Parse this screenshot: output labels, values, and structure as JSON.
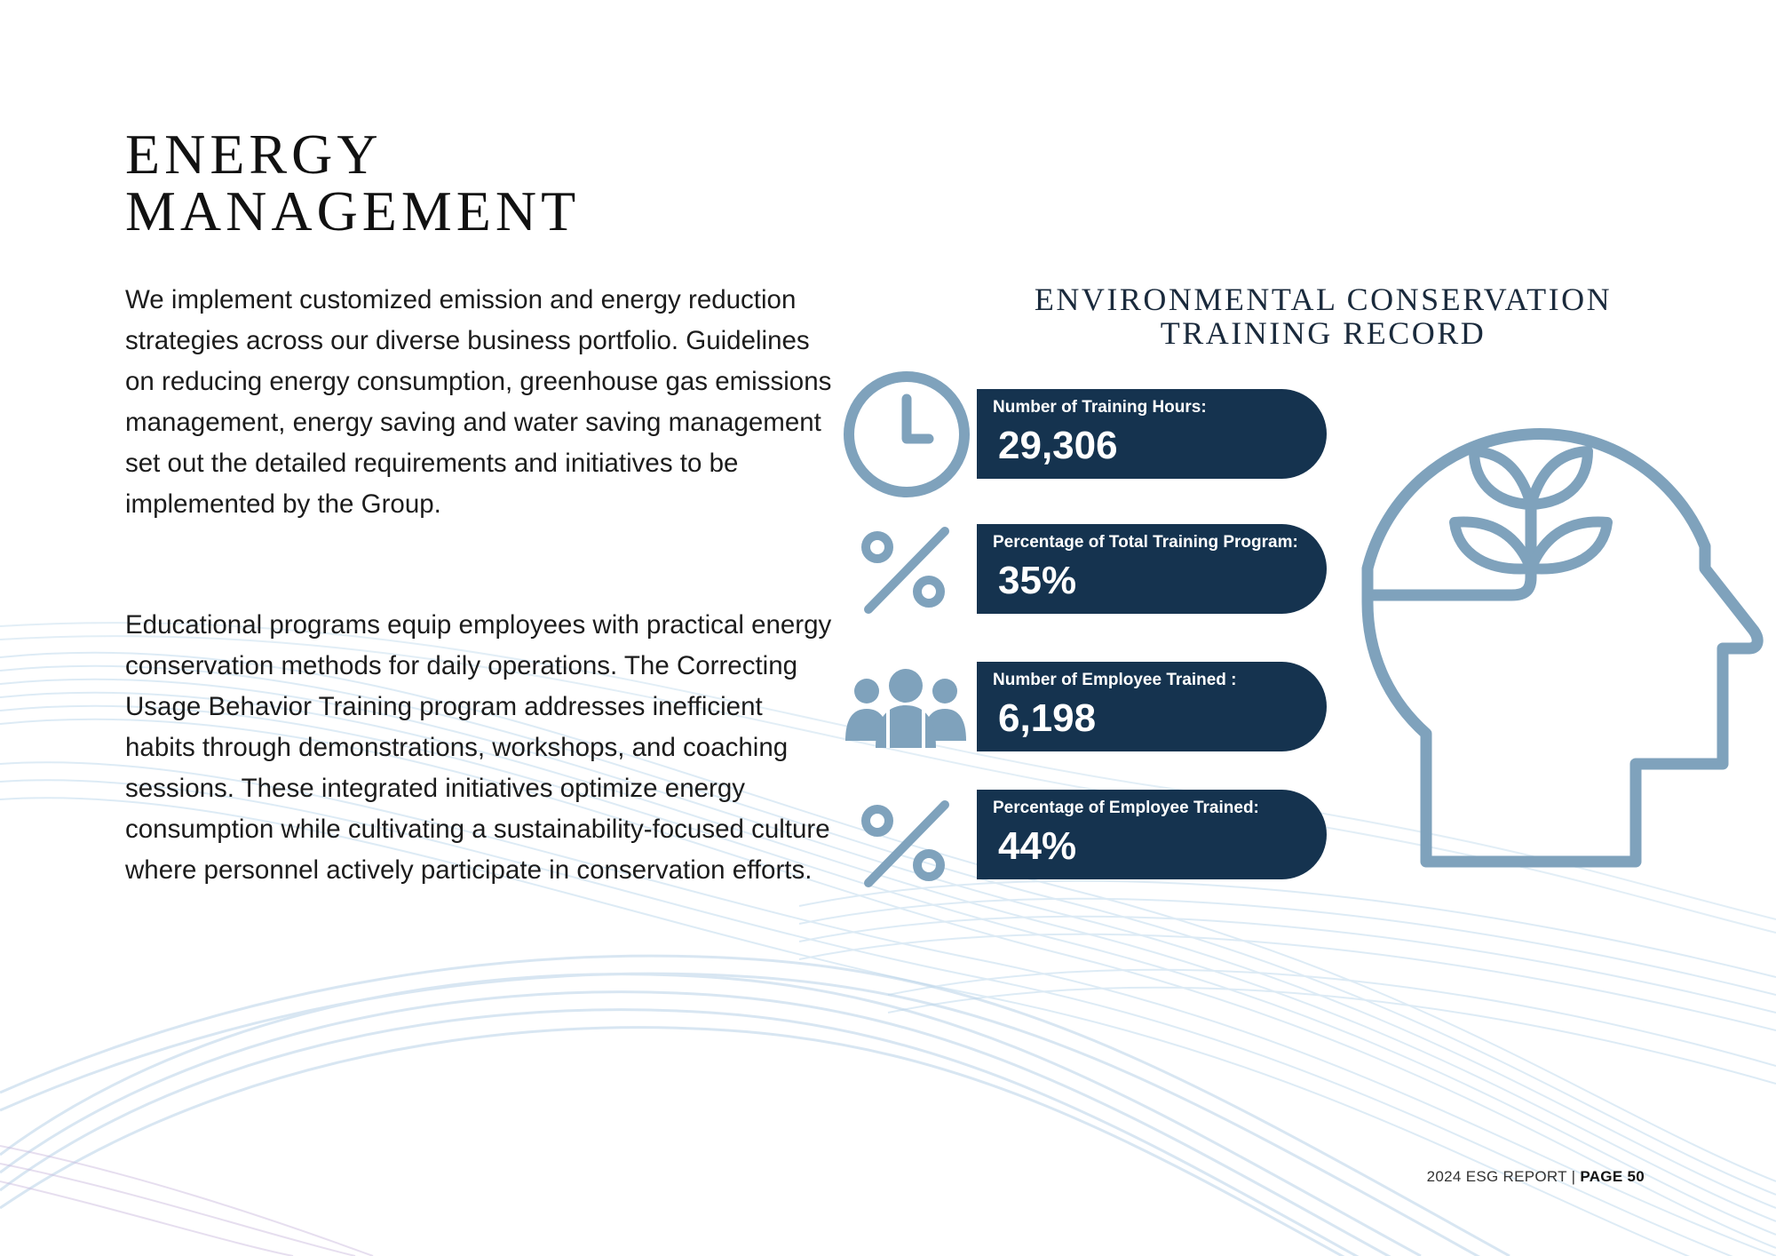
{
  "heading": {
    "line1": "ENERGY",
    "line2": "MANAGEMENT"
  },
  "paragraphs": [
    "We implement customized emission and energy reduction strategies across our diverse business portfolio. Guidelines on reducing energy consumption, greenhouse gas emissions management, energy saving and water saving management set out the detailed requirements and initiatives to be implemented by the Group.",
    "Educational programs equip employees with practical energy conservation methods for daily operations. The Correcting Usage Behavior Training program addresses inefficient habits through demonstrations, workshops, and coaching sessions. These integrated initiatives optimize energy consumption while cultivating a sustainability-focused culture where personnel actively participate in conservation efforts."
  ],
  "infographic": {
    "title_line1": "ENVIRONMENTAL CONSERVATION",
    "title_line2": "TRAINING RECORD",
    "stats": [
      {
        "label": "Number of Training Hours:",
        "value": "29,306",
        "icon": "clock-icon"
      },
      {
        "label": "Percentage of Total Training Program:",
        "value": "35%",
        "icon": "percent-icon"
      },
      {
        "label": "Number of Employee Trained :",
        "value": "6,198",
        "icon": "people-icon"
      },
      {
        "label": "Percentage of Employee Trained:",
        "value": "44%",
        "icon": "percent-icon"
      }
    ],
    "side_icon": "head-with-sprout-icon"
  },
  "colors": {
    "pill": "#15334f",
    "icon": "#7fa2bc",
    "text": "#1c1c1c"
  },
  "footer": {
    "report": "2024 ESG REPORT",
    "separator": "|",
    "page": "PAGE 50"
  }
}
